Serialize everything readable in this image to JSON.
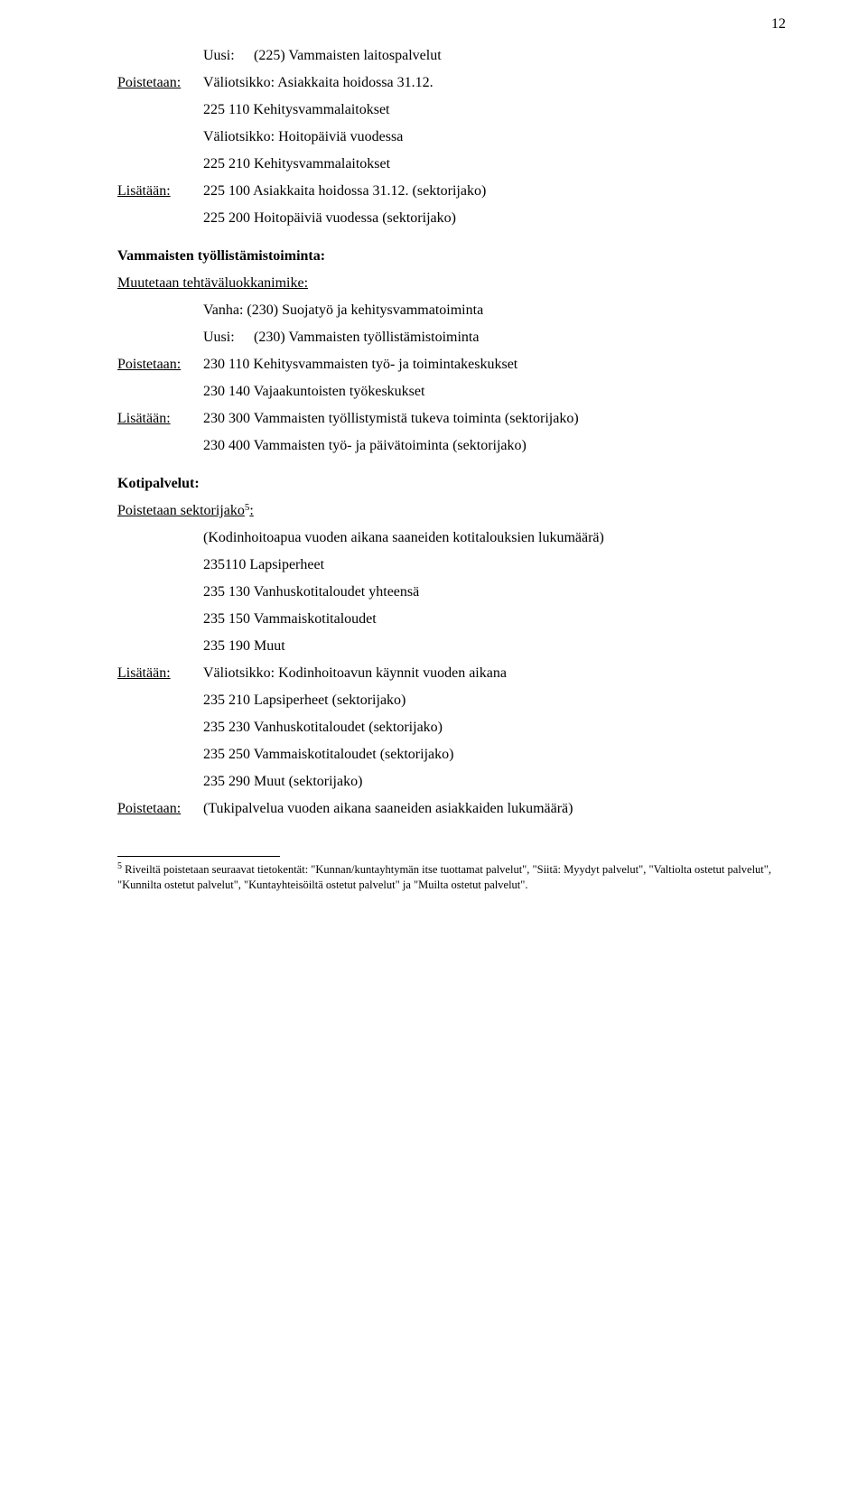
{
  "page_number": "12",
  "block1": {
    "uusi_label": "Uusi:",
    "uusi_text": "(225) Vammaisten laitospalvelut",
    "poistetaan_label": "Poistetaan:",
    "poistetaan_text": "Väliotsikko: Asiakkaita hoidossa 31.12.",
    "line_a": "225 110 Kehitysvammalaitokset",
    "line_b": "Väliotsikko: Hoitopäiviä vuodessa",
    "line_c": "225 210 Kehitysvammalaitokset",
    "lisataan_label": "Lisätään:",
    "lisataan_text": "225 100 Asiakkaita hoidossa 31.12. (sektorijako)",
    "line_d": "225 200 Hoitopäiviä vuodessa (sektorijako)"
  },
  "block2": {
    "heading": "Vammaisten työllistämistoiminta:",
    "subheading": "Muutetaan tehtäväluokkanimike:",
    "vanha": "Vanha: (230) Suojatyö ja kehitysvammatoiminta",
    "uusi_label": "Uusi:",
    "uusi_text": "(230) Vammaisten työllistämistoiminta",
    "poistetaan_label": "Poistetaan:",
    "poistetaan_text": "230 110 Kehitysvammaisten työ- ja toimintakeskukset",
    "line_a": "230 140 Vajaakuntoisten työkeskukset",
    "lisataan_label": "Lisätään:",
    "lisataan_text": "230 300 Vammaisten työllistymistä tukeva toiminta (sektorijako)",
    "line_b": "230 400 Vammaisten työ- ja päivätoiminta (sektorijako)"
  },
  "block3": {
    "heading": "Kotipalvelut:",
    "subheading": "Poistetaan sektorijako",
    "sup": "5",
    "colon": ":",
    "line_a": "(Kodinhoitoapua vuoden aikana saaneiden kotitalouksien lukumäärä)",
    "line_b": "235110 Lapsiperheet",
    "line_c": "235 130 Vanhuskotitaloudet yhteensä",
    "line_d": "235 150 Vammaiskotitaloudet",
    "line_e": "235 190 Muut",
    "lisataan_label": "Lisätään:",
    "lisataan_text": "Väliotsikko: Kodinhoitoavun käynnit vuoden aikana",
    "line_f": "235 210 Lapsiperheet (sektorijako)",
    "line_g": "235 230 Vanhuskotitaloudet  (sektorijako)",
    "line_h": "235 250 Vammaiskotitaloudet (sektorijako)",
    "line_i": "235 290 Muut (sektorijako)",
    "poistetaan_label": "Poistetaan:",
    "poistetaan_text": "(Tukipalvelua vuoden aikana saaneiden asiakkaiden lukumäärä)"
  },
  "footnote": {
    "sup": "5",
    "text": " Riveiltä poistetaan seuraavat tietokentät: \"Kunnan/kuntayhtymän itse tuottamat palvelut\", \"Siitä: Myydyt palvelut\", \"Valtiolta ostetut palvelut\", \"Kunnilta ostetut palvelut\", \"Kuntayhteisöiltä ostetut palvelut\" ja \"Muilta ostetut palvelut\"."
  }
}
